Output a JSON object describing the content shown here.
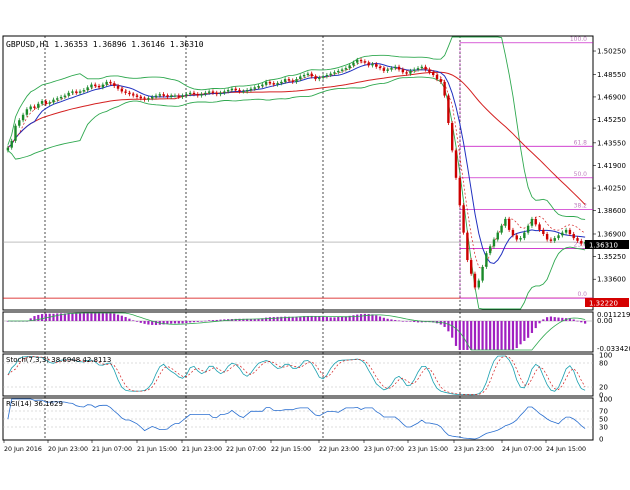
{
  "chart_data": [
    {
      "type": "candlestick",
      "header": "GBPUSD,H1",
      "ohlc": [
        "1.36353",
        "1.36896",
        "1.36146",
        "1.36310"
      ],
      "current_price": "1.36310",
      "low_marker": "1.32220",
      "y_ticks": [
        "1.50250",
        "1.48550",
        "1.46900",
        "1.45250",
        "1.43550",
        "1.41900",
        "1.40250",
        "1.38600",
        "1.36900",
        "1.35250",
        "1.33600",
        "1.31950"
      ],
      "fib_levels": [
        {
          "label": "100.0",
          "price": 1.5085
        },
        {
          "label": "61.8",
          "price": 1.433
        },
        {
          "label": "50.0",
          "price": 1.41
        },
        {
          "label": "38.2",
          "price": 1.387
        },
        {
          "label": "23.6",
          "price": 1.3583
        },
        {
          "label": "0.0",
          "price": 1.3222
        }
      ],
      "close": [
        1.432,
        1.437,
        1.448,
        1.452,
        1.456,
        1.46,
        1.462,
        1.461,
        1.464,
        1.466,
        1.464,
        1.465,
        1.467,
        1.468,
        1.469,
        1.47,
        1.472,
        1.473,
        1.472,
        1.473,
        1.474,
        1.476,
        1.478,
        1.477,
        1.476,
        1.478,
        1.48,
        1.479,
        1.477,
        1.475,
        1.473,
        1.472,
        1.471,
        1.47,
        1.469,
        1.468,
        1.467,
        1.468,
        1.469,
        1.47,
        1.471,
        1.47,
        1.469,
        1.47,
        1.47,
        1.469,
        1.47,
        1.471,
        1.472,
        1.471,
        1.47,
        1.471,
        1.472,
        1.473,
        1.472,
        1.471,
        1.472,
        1.473,
        1.474,
        1.475,
        1.474,
        1.473,
        1.473,
        1.474,
        1.475,
        1.476,
        1.477,
        1.478,
        1.48,
        1.479,
        1.478,
        1.479,
        1.48,
        1.482,
        1.481,
        1.48,
        1.482,
        1.484,
        1.485,
        1.486,
        1.484,
        1.482,
        1.483,
        1.484,
        1.485,
        1.486,
        1.487,
        1.488,
        1.489,
        1.49,
        1.492,
        1.494,
        1.496,
        1.495,
        1.494,
        1.492,
        1.493,
        1.491,
        1.49,
        1.488,
        1.489,
        1.49,
        1.491,
        1.489,
        1.487,
        1.486,
        1.488,
        1.489,
        1.49,
        1.491,
        1.489,
        1.487,
        1.485,
        1.482,
        1.48,
        1.47,
        1.45,
        1.43,
        1.41,
        1.39,
        1.37,
        1.35,
        1.34,
        1.33,
        1.335,
        1.345,
        1.355,
        1.36,
        1.365,
        1.37,
        1.375,
        1.38,
        1.372,
        1.368,
        1.365,
        1.366,
        1.37,
        1.375,
        1.38,
        1.376,
        1.372,
        1.369,
        1.365,
        1.364,
        1.366,
        1.368,
        1.37,
        1.372,
        1.369,
        1.366,
        1.364,
        1.362,
        1.3631
      ],
      "macd_ticks": [
        "0.011219",
        "0.00",
        "-0.033420"
      ],
      "stoch_label": "Stoch(7,3,3) 38.6948 42.8113",
      "stoch_ticks": [
        "100",
        "80",
        "20",
        "0"
      ],
      "rsi_label": "RSI(14) 36.1629",
      "rsi_ticks": [
        "100",
        "70",
        "50",
        "30",
        "0"
      ],
      "x_labels": [
        "20 Jun 2016",
        "20 Jun 23:00",
        "21 Jun 07:00",
        "21 Jun 15:00",
        "21 Jun 23:00",
        "22 Jun 07:00",
        "22 Jun 15:00",
        "22 Jun 23:00",
        "23 Jun 07:00",
        "23 Jun 15:00",
        "23 Jun 23:00",
        "24 Jun 07:00",
        "24 Jun 15:00"
      ]
    }
  ]
}
